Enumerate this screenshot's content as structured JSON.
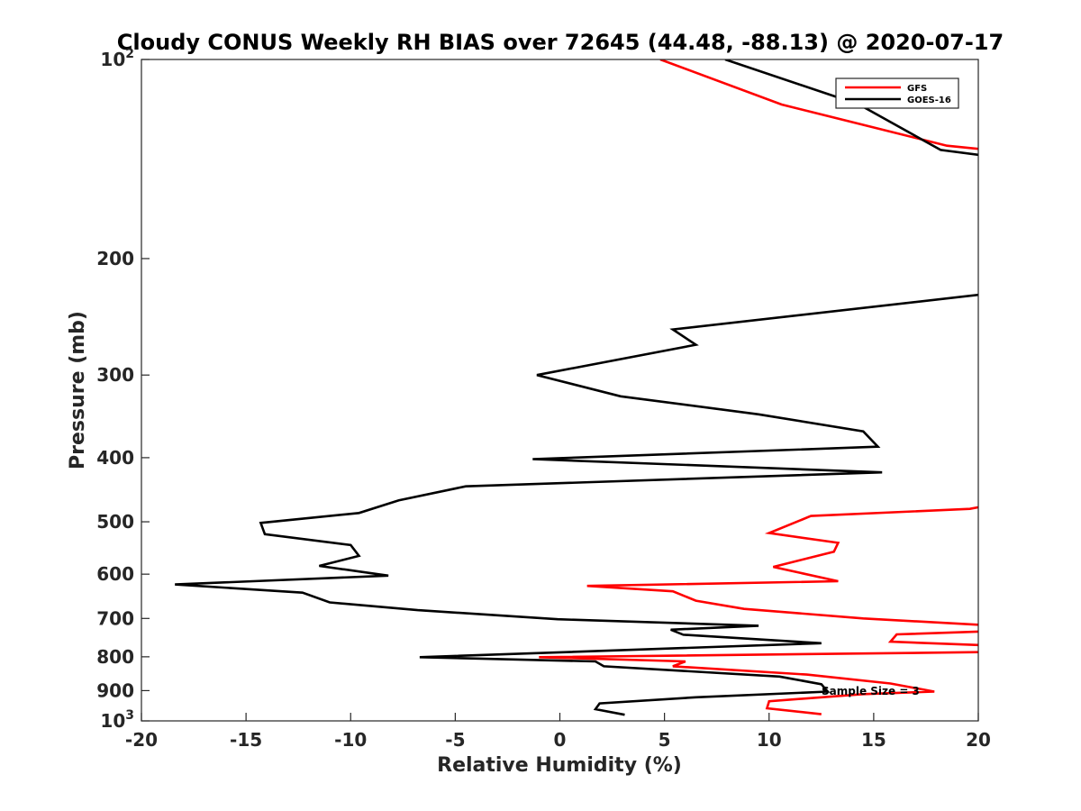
{
  "chart_data": {
    "type": "line",
    "title": "Cloudy CONUS Weekly RH BIAS over 72645 (44.48, -88.13) @ 2020-07-17",
    "xlabel": "Relative Humidity (%)",
    "ylabel": "Pressure (mb)",
    "xlim": [
      -20,
      20
    ],
    "ylim": [
      100,
      1000
    ],
    "yscale": "log",
    "y_reversed": true,
    "x_ticks": [
      "-20",
      "-15",
      "-10",
      "-5",
      "0",
      "5",
      "10",
      "15",
      "20"
    ],
    "y_ticks": [
      {
        "value": 100,
        "base": "10",
        "exp": "2"
      },
      {
        "value": 200,
        "label": "200"
      },
      {
        "value": 300,
        "label": "300"
      },
      {
        "value": 400,
        "label": "400"
      },
      {
        "value": 500,
        "label": "500"
      },
      {
        "value": 600,
        "label": "600"
      },
      {
        "value": 700,
        "label": "700"
      },
      {
        "value": 800,
        "label": "800"
      },
      {
        "value": 900,
        "label": "900"
      },
      {
        "value": 1000,
        "base": "10",
        "exp": "3"
      }
    ],
    "grid": false,
    "legend_position": "top-right",
    "annotation": "Sample Size = 3",
    "series": [
      {
        "name": "GFS",
        "color": "#ff0000",
        "points": [
          [
            4.8,
            100
          ],
          [
            10.6,
            117
          ],
          [
            18.5,
            135
          ],
          [
            20.5,
            137
          ],
          [
            20.5,
            472
          ],
          [
            19.6,
            478
          ],
          [
            12.0,
            490
          ],
          [
            10.0,
            520
          ],
          [
            13.3,
            538
          ],
          [
            13.1,
            555
          ],
          [
            10.2,
            585
          ],
          [
            13.3,
            615
          ],
          [
            1.3,
            625
          ],
          [
            5.4,
            637
          ],
          [
            6.5,
            658
          ],
          [
            8.8,
            677
          ],
          [
            14.5,
            700
          ],
          [
            20.5,
            717
          ],
          [
            20.5,
            732
          ],
          [
            16.1,
            740
          ],
          [
            15.8,
            759
          ],
          [
            20.5,
            769
          ],
          [
            20.5,
            787
          ],
          [
            -1.0,
            801
          ],
          [
            6.0,
            813
          ],
          [
            5.4,
            827
          ],
          [
            11.8,
            851
          ],
          [
            15.8,
            878
          ],
          [
            17.9,
            903
          ],
          [
            14.5,
            911
          ],
          [
            10.0,
            934
          ],
          [
            9.9,
            957
          ],
          [
            12.5,
            977
          ]
        ]
      },
      {
        "name": "GOES-16",
        "color": "#000000",
        "points": [
          [
            7.9,
            100
          ],
          [
            14.3,
            117
          ],
          [
            18.2,
            137
          ],
          [
            20.5,
            140
          ],
          [
            20.5,
            226
          ],
          [
            5.4,
            256
          ],
          [
            6.5,
            270
          ],
          [
            -1.1,
            300
          ],
          [
            2.9,
            323
          ],
          [
            9.5,
            344
          ],
          [
            14.5,
            365
          ],
          [
            15.2,
            385
          ],
          [
            -1.3,
            402
          ],
          [
            15.4,
            421
          ],
          [
            -4.5,
            442
          ],
          [
            -7.7,
            464
          ],
          [
            -9.6,
            485
          ],
          [
            -14.3,
            502
          ],
          [
            -14.1,
            522
          ],
          [
            -10.0,
            542
          ],
          [
            -9.6,
            563
          ],
          [
            -11.5,
            583
          ],
          [
            -8.2,
            603
          ],
          [
            -18.4,
            622
          ],
          [
            -12.3,
            640
          ],
          [
            -11.0,
            662
          ],
          [
            -6.8,
            680
          ],
          [
            -0.1,
            702
          ],
          [
            9.5,
            718
          ],
          [
            5.3,
            728
          ],
          [
            5.9,
            741
          ],
          [
            12.5,
            763
          ],
          [
            -6.7,
            801
          ],
          [
            1.7,
            813
          ],
          [
            2.1,
            827
          ],
          [
            10.5,
            857
          ],
          [
            12.5,
            880
          ],
          [
            12.8,
            903
          ],
          [
            6.5,
            921
          ],
          [
            1.9,
            941
          ],
          [
            1.7,
            960
          ],
          [
            3.1,
            979
          ]
        ]
      }
    ]
  }
}
